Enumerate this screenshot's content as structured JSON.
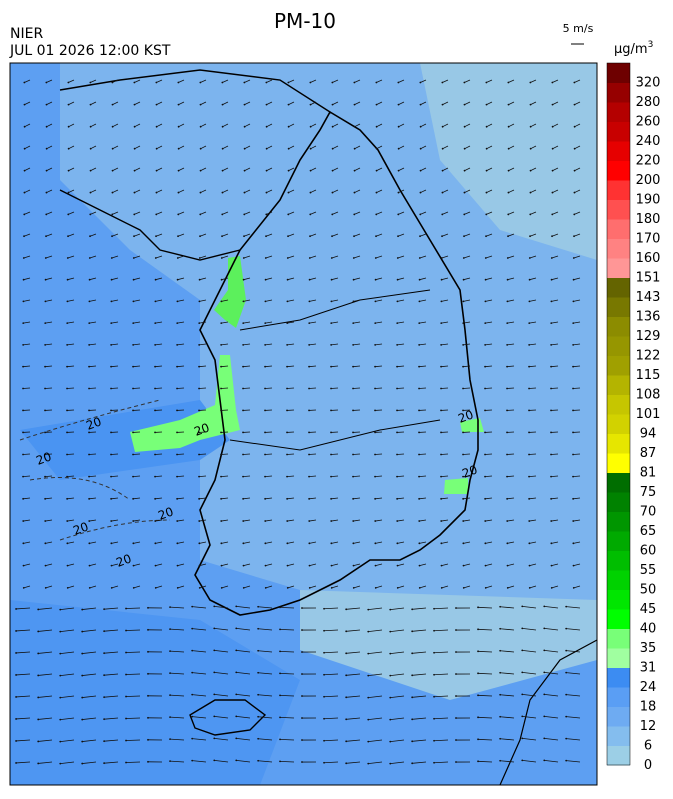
{
  "header": {
    "title": "PM-10",
    "agency": "NIER",
    "datetime": "JUL 01 2026 12:00 KST",
    "wind_scale": "5 m/s",
    "unit": "μg/m",
    "unit_exp": "3"
  },
  "colorbar": {
    "labels": [
      "0",
      "6",
      "12",
      "18",
      "24",
      "31",
      "35",
      "40",
      "45",
      "50",
      "55",
      "60",
      "65",
      "70",
      "75",
      "81",
      "87",
      "94",
      "101",
      "108",
      "115",
      "122",
      "129",
      "136",
      "143",
      "151",
      "160",
      "170",
      "180",
      "190",
      "200",
      "220",
      "240",
      "260",
      "280",
      "320"
    ],
    "colors": [
      "#9ccfe6",
      "#84bdee",
      "#6eabf2",
      "#5a9ef4",
      "#3c8cf2",
      "#a0ffa0",
      "#78ff78",
      "#00ff00",
      "#00e600",
      "#00d200",
      "#00be00",
      "#00aa00",
      "#009600",
      "#008200",
      "#006e00",
      "#ffff00",
      "#e6e600",
      "#d2d200",
      "#c6c600",
      "#b4b400",
      "#a0a000",
      "#969600",
      "#8c8c00",
      "#787800",
      "#646400",
      "#ff9696",
      "#ff8282",
      "#ff6e6e",
      "#ff5050",
      "#ff3232",
      "#ff0000",
      "#e60000",
      "#c80000",
      "#b40000",
      "#960000",
      "#6e0000"
    ]
  },
  "map": {
    "contour_labels": [
      "20",
      "20",
      "20",
      "20",
      "20",
      "20",
      "20",
      "20"
    ]
  }
}
